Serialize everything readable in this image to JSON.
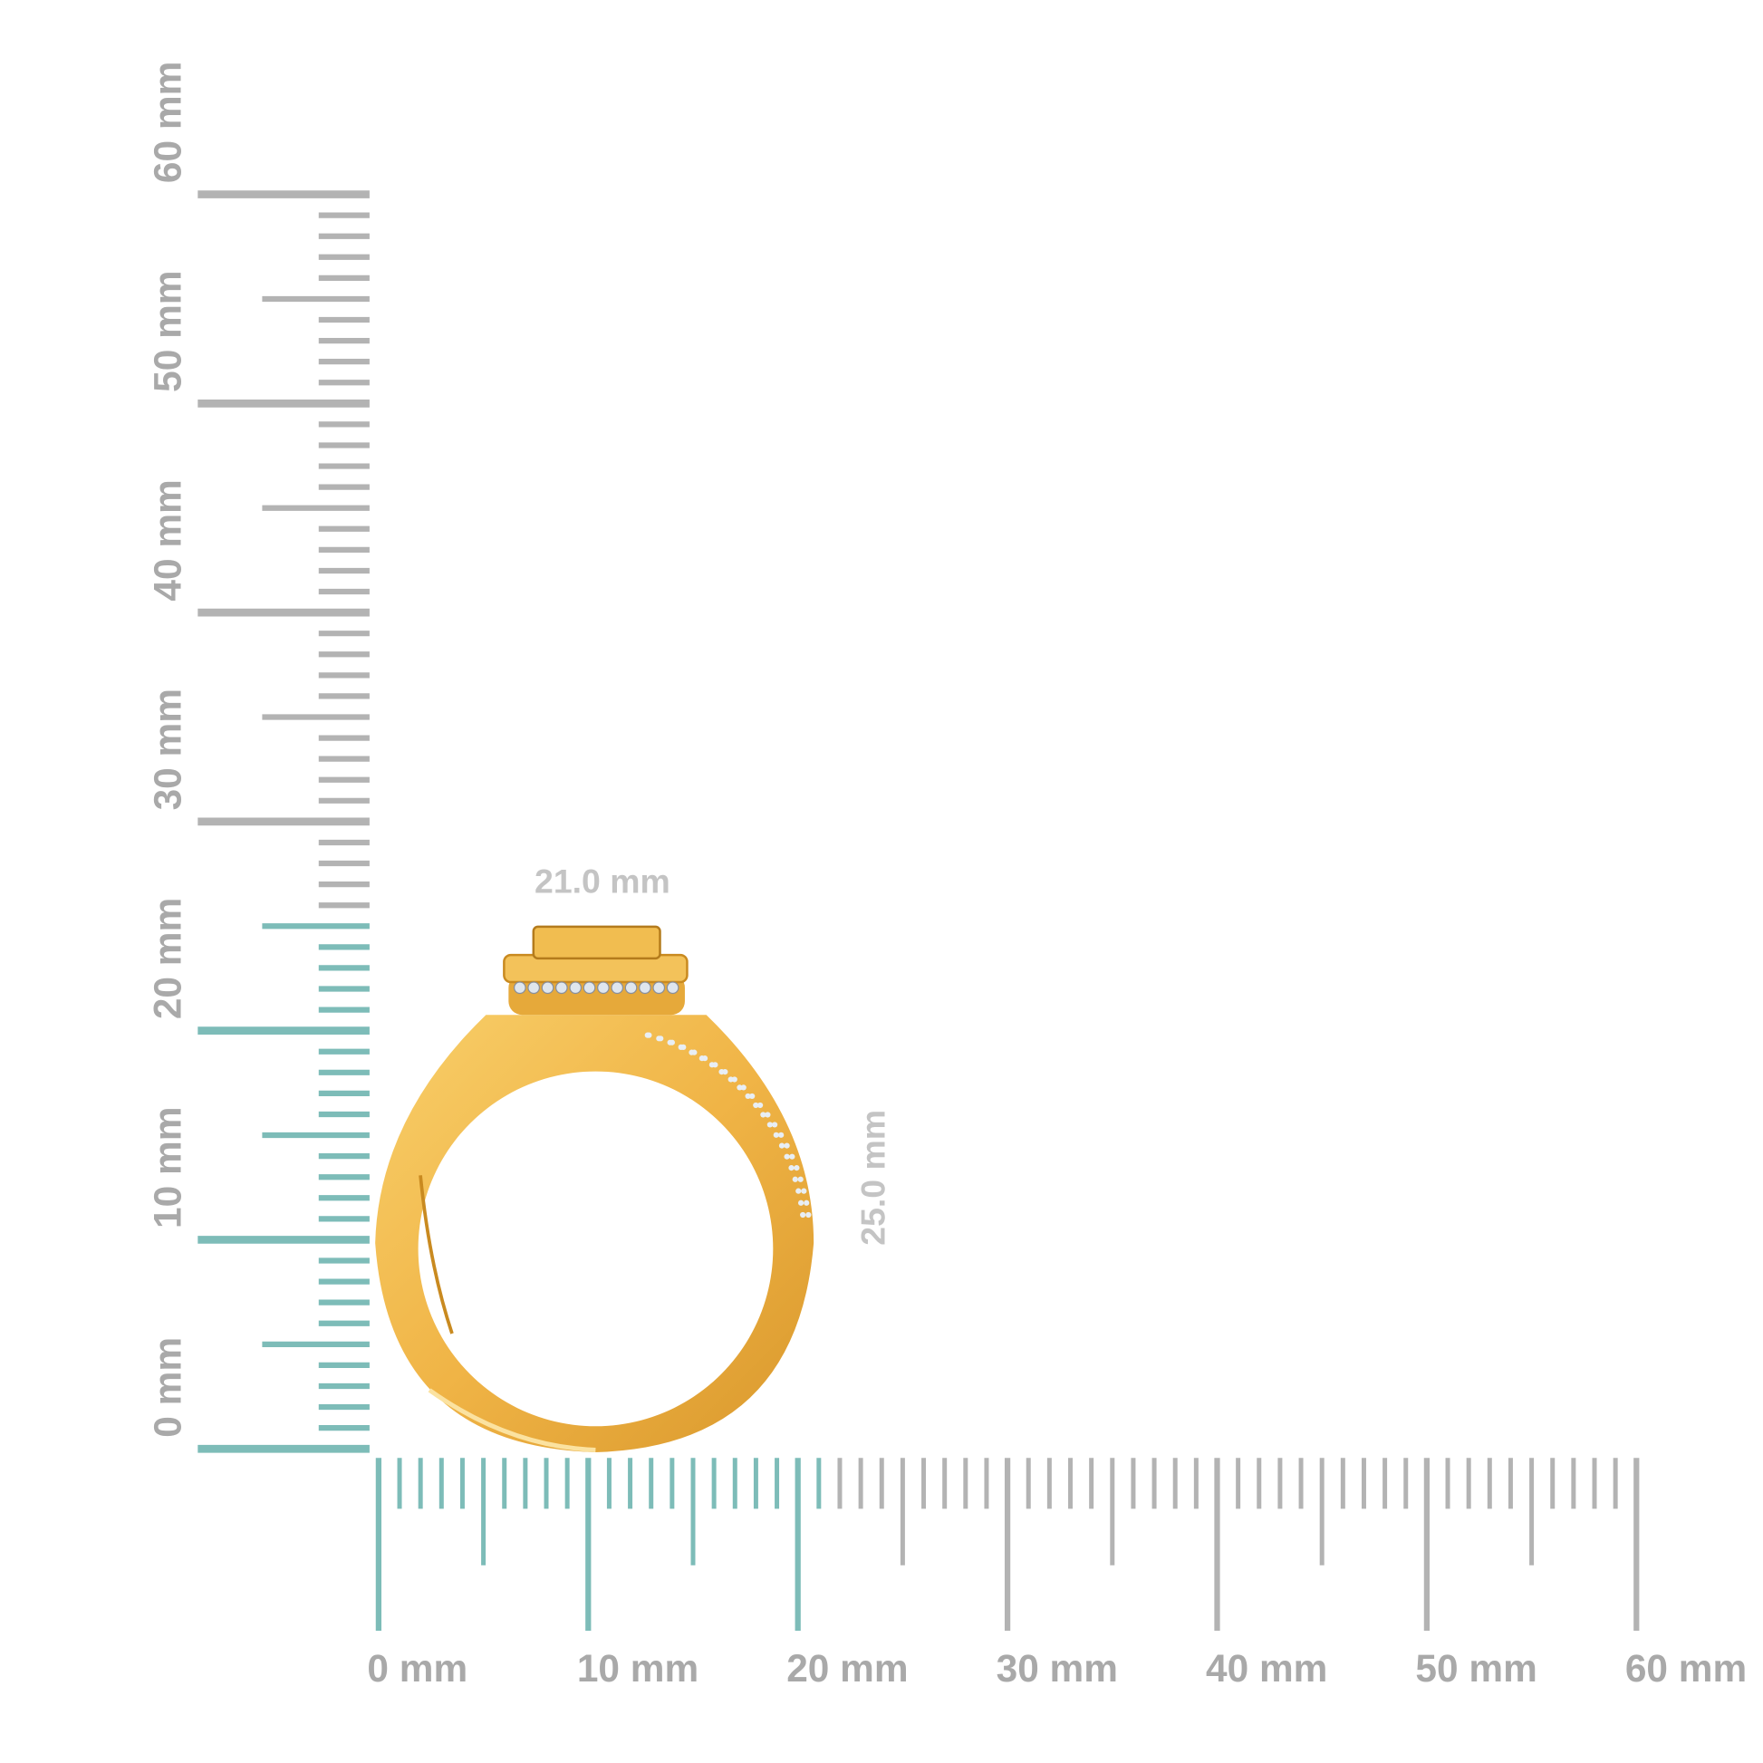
{
  "colors": {
    "ruler_active": "#7dbcb8",
    "ruler_inactive": "#b3b3b3",
    "gold": "#f2b94a",
    "gold_dark": "#d99a2b",
    "label": "#a9a9a9"
  },
  "vertical_ruler": {
    "labels": [
      "0 mm",
      "10 mm",
      "20 mm",
      "30 mm",
      "40 mm",
      "50 mm",
      "60 mm"
    ],
    "max_mm": 60,
    "highlight_mm": 25
  },
  "horizontal_ruler": {
    "labels": [
      "0 mm",
      "10 mm",
      "20 mm",
      "30 mm",
      "40 mm",
      "50 mm",
      "60 mm"
    ],
    "max_mm": 60,
    "highlight_mm": 21
  },
  "dimensions": {
    "width": "21.0 mm",
    "height": "25.0 mm"
  },
  "product": {
    "icon": "gold-halo-ring-image"
  }
}
